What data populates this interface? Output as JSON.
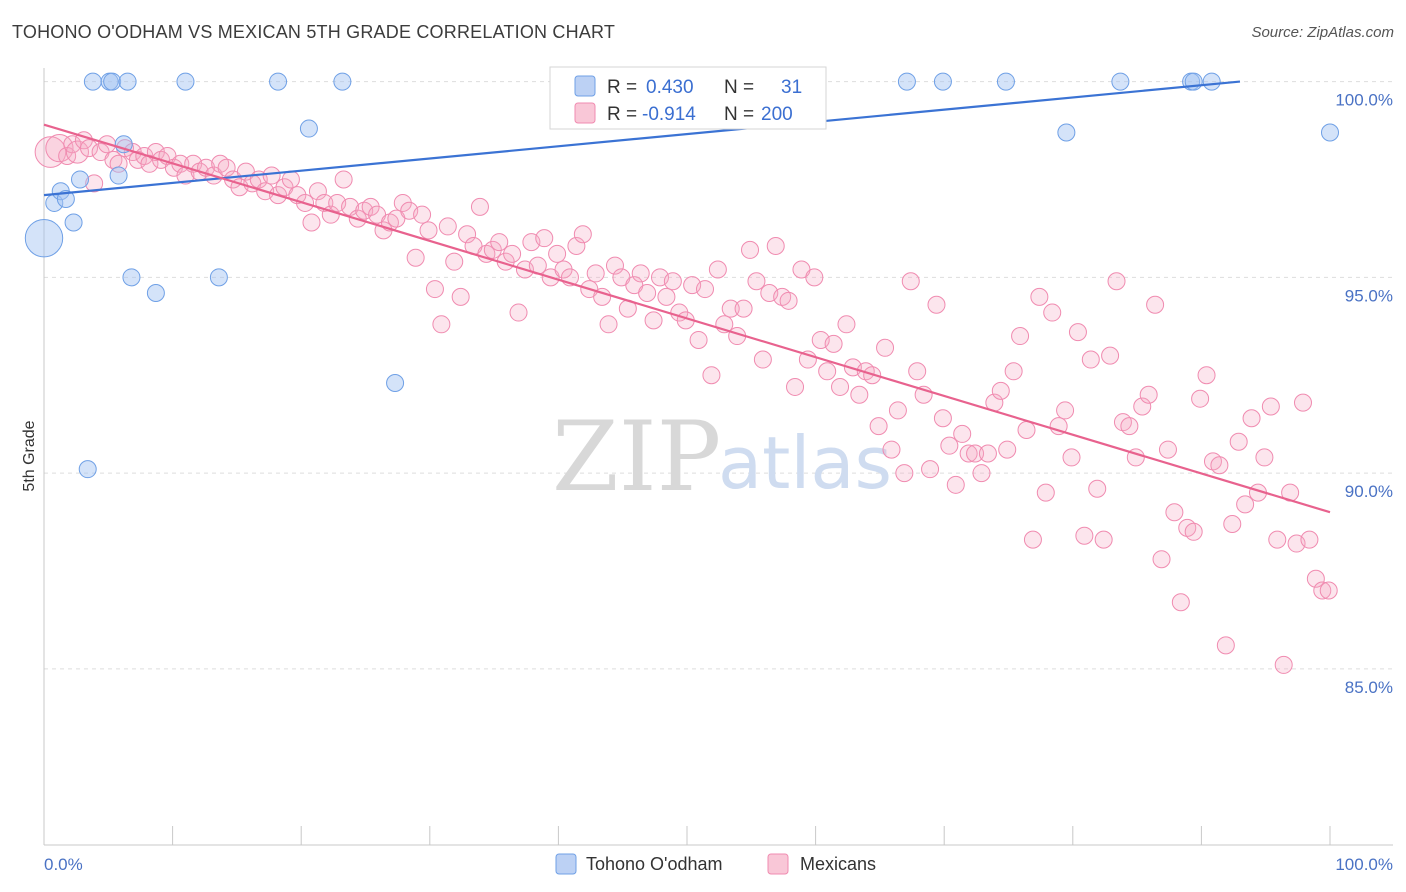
{
  "title": "TOHONO O'ODHAM VS MEXICAN 5TH GRADE CORRELATION CHART",
  "source": "Source: ZipAtlas.com",
  "watermark": {
    "zip": "ZIP",
    "atlas": "atlas"
  },
  "legend": {
    "rows": [
      {
        "r_label": "R =",
        "r_value": "0.430",
        "n_label": "N =",
        "n_value": "31",
        "color": "#6fa0e6"
      },
      {
        "r_label": "R =",
        "r_value": "-0.914",
        "n_label": "N =",
        "n_value": "200",
        "color": "#f08bb0"
      }
    ]
  },
  "bottom_legend": [
    {
      "label": "Tohono O'odham",
      "color": "#6fa0e6"
    },
    {
      "label": "Mexicans",
      "color": "#f08bb0"
    }
  ],
  "colors": {
    "blue": "#3b73d4",
    "pink": "#e8628e",
    "grid": "#dddddd"
  },
  "chart_data": {
    "type": "scatter",
    "title": "TOHONO O'ODHAM VS MEXICAN 5TH GRADE CORRELATION CHART",
    "xlabel": "",
    "ylabel": "5th Grade",
    "xlim": [
      0,
      100
    ],
    "ylim": [
      80.5,
      100.5
    ],
    "x_tick_labels": [
      "0.0%",
      "100.0%"
    ],
    "y_ticks": [
      85,
      90,
      95,
      100
    ],
    "y_tick_labels": [
      "85.0%",
      "90.0%",
      "95.0%",
      "100.0%"
    ],
    "grid": true,
    "series": [
      {
        "name": "Tohono O'odham",
        "color": "#6fa0e6",
        "trend": {
          "x": [
            0,
            93
          ],
          "y": [
            97.1,
            100.0
          ]
        },
        "points": [
          [
            0,
            96.0,
            2.2
          ],
          [
            0.8,
            96.9,
            1
          ],
          [
            1.3,
            97.2,
            1
          ],
          [
            1.7,
            97.0,
            1
          ],
          [
            2.3,
            96.4,
            1
          ],
          [
            2.8,
            97.5,
            1
          ],
          [
            3.4,
            90.1,
            1
          ],
          [
            3.8,
            100.0,
            1
          ],
          [
            5.1,
            100.0,
            1
          ],
          [
            5.3,
            100.0,
            1
          ],
          [
            5.8,
            97.6,
            1
          ],
          [
            6.2,
            98.4,
            1
          ],
          [
            6.5,
            100.0,
            1
          ],
          [
            6.8,
            95.0,
            1
          ],
          [
            8.7,
            94.6,
            1
          ],
          [
            11,
            100.0,
            1
          ],
          [
            13.6,
            95.0,
            1
          ],
          [
            18.2,
            100.0,
            1
          ],
          [
            20.6,
            98.8,
            1
          ],
          [
            23.2,
            100.0,
            1
          ],
          [
            27.3,
            92.3,
            1
          ],
          [
            47.8,
            100.0,
            1
          ],
          [
            55.3,
            100.0,
            1
          ],
          [
            67.1,
            100.0,
            1
          ],
          [
            69.9,
            100.0,
            1
          ],
          [
            74.8,
            100.0,
            1
          ],
          [
            79.5,
            98.7,
            1
          ],
          [
            83.7,
            100.0,
            1
          ],
          [
            89.2,
            100.0,
            1
          ],
          [
            89.4,
            100.0,
            1
          ],
          [
            90.8,
            100.0,
            1
          ],
          [
            100,
            98.7,
            1
          ]
        ]
      },
      {
        "name": "Mexicans",
        "color": "#f08bb0",
        "trend": {
          "x": [
            0,
            100
          ],
          "y": [
            98.9,
            89.0
          ]
        },
        "points": [
          [
            0.5,
            98.2,
            1.8
          ],
          [
            1.2,
            98.3,
            1.6
          ],
          [
            1.8,
            98.1,
            1
          ],
          [
            2.2,
            98.4,
            1
          ],
          [
            2.6,
            98.2,
            1.3
          ],
          [
            3.1,
            98.5,
            1
          ],
          [
            3.5,
            98.3,
            1
          ],
          [
            3.9,
            97.4,
            1
          ],
          [
            4.4,
            98.2,
            1
          ],
          [
            4.9,
            98.4,
            1
          ],
          [
            5.4,
            98.0,
            1
          ],
          [
            5.8,
            97.9,
            1
          ],
          [
            6.3,
            98.3,
            1
          ],
          [
            6.9,
            98.2,
            1
          ],
          [
            7.3,
            98.0,
            1
          ],
          [
            7.8,
            98.1,
            1
          ],
          [
            8.2,
            97.9,
            1
          ],
          [
            8.7,
            98.2,
            1
          ],
          [
            9.1,
            98.0,
            1
          ],
          [
            9.6,
            98.1,
            1
          ],
          [
            10.1,
            97.8,
            1
          ],
          [
            10.6,
            97.9,
            1
          ],
          [
            11.0,
            97.6,
            1
          ],
          [
            11.6,
            97.9,
            1
          ],
          [
            12.1,
            97.7,
            1
          ],
          [
            12.6,
            97.8,
            1
          ],
          [
            13.2,
            97.6,
            1
          ],
          [
            13.7,
            97.9,
            1
          ],
          [
            14.2,
            97.8,
            1
          ],
          [
            14.7,
            97.5,
            1
          ],
          [
            15.2,
            97.3,
            1
          ],
          [
            15.7,
            97.7,
            1
          ],
          [
            16.2,
            97.4,
            1
          ],
          [
            16.7,
            97.5,
            1
          ],
          [
            17.2,
            97.2,
            1
          ],
          [
            17.7,
            97.6,
            1
          ],
          [
            18.2,
            97.1,
            1
          ],
          [
            18.7,
            97.3,
            1
          ],
          [
            19.2,
            97.5,
            1
          ],
          [
            19.7,
            97.1,
            1
          ],
          [
            20.3,
            96.9,
            1
          ],
          [
            20.8,
            96.4,
            1
          ],
          [
            21.3,
            97.2,
            1
          ],
          [
            21.8,
            96.9,
            1
          ],
          [
            22.3,
            96.6,
            1
          ],
          [
            22.8,
            96.9,
            1
          ],
          [
            23.3,
            97.5,
            1
          ],
          [
            23.8,
            96.8,
            1
          ],
          [
            24.4,
            96.5,
            1
          ],
          [
            24.9,
            96.7,
            1
          ],
          [
            25.4,
            96.8,
            1
          ],
          [
            25.9,
            96.6,
            1
          ],
          [
            26.4,
            96.2,
            1
          ],
          [
            26.9,
            96.4,
            1
          ],
          [
            27.4,
            96.5,
            1
          ],
          [
            27.9,
            96.9,
            1
          ],
          [
            28.4,
            96.7,
            1
          ],
          [
            28.9,
            95.5,
            1
          ],
          [
            29.4,
            96.6,
            1
          ],
          [
            29.9,
            96.2,
            1
          ],
          [
            30.4,
            94.7,
            1
          ],
          [
            30.9,
            93.8,
            1
          ],
          [
            31.4,
            96.3,
            1
          ],
          [
            31.9,
            95.4,
            1
          ],
          [
            32.4,
            94.5,
            1
          ],
          [
            32.9,
            96.1,
            1
          ],
          [
            33.4,
            95.8,
            1
          ],
          [
            33.9,
            96.8,
            1
          ],
          [
            34.4,
            95.6,
            1
          ],
          [
            34.9,
            95.7,
            1
          ],
          [
            35.4,
            95.9,
            1
          ],
          [
            35.9,
            95.4,
            1
          ],
          [
            36.4,
            95.6,
            1
          ],
          [
            36.9,
            94.1,
            1
          ],
          [
            37.4,
            95.2,
            1
          ],
          [
            37.9,
            95.9,
            1
          ],
          [
            38.4,
            95.3,
            1
          ],
          [
            38.9,
            96.0,
            1
          ],
          [
            39.4,
            95.0,
            1
          ],
          [
            39.9,
            95.6,
            1
          ],
          [
            40.4,
            95.2,
            1
          ],
          [
            40.9,
            95.0,
            1
          ],
          [
            41.4,
            95.8,
            1
          ],
          [
            41.9,
            96.1,
            1
          ],
          [
            42.4,
            94.7,
            1
          ],
          [
            42.9,
            95.1,
            1
          ],
          [
            43.4,
            94.5,
            1
          ],
          [
            43.9,
            93.8,
            1
          ],
          [
            44.4,
            95.3,
            1
          ],
          [
            44.9,
            95.0,
            1
          ],
          [
            45.4,
            94.2,
            1
          ],
          [
            45.9,
            94.8,
            1
          ],
          [
            46.4,
            95.1,
            1
          ],
          [
            46.9,
            94.6,
            1
          ],
          [
            47.4,
            93.9,
            1
          ],
          [
            47.9,
            95.0,
            1
          ],
          [
            48.4,
            94.5,
            1
          ],
          [
            48.9,
            94.9,
            1
          ],
          [
            49.4,
            94.1,
            1
          ],
          [
            49.9,
            93.9,
            1
          ],
          [
            50.4,
            94.8,
            1
          ],
          [
            50.9,
            93.4,
            1
          ],
          [
            51.4,
            94.7,
            1
          ],
          [
            51.9,
            92.5,
            1
          ],
          [
            52.4,
            95.2,
            1
          ],
          [
            52.9,
            93.8,
            1
          ],
          [
            53.4,
            94.2,
            1
          ],
          [
            53.9,
            93.5,
            1
          ],
          [
            54.4,
            94.2,
            1
          ],
          [
            54.9,
            95.7,
            1
          ],
          [
            55.4,
            94.9,
            1
          ],
          [
            55.9,
            92.9,
            1
          ],
          [
            56.4,
            94.6,
            1
          ],
          [
            56.9,
            95.8,
            1
          ],
          [
            57.4,
            94.5,
            1
          ],
          [
            57.9,
            94.4,
            1
          ],
          [
            58.4,
            92.2,
            1
          ],
          [
            58.9,
            95.2,
            1
          ],
          [
            59.4,
            92.9,
            1
          ],
          [
            59.9,
            95.0,
            1
          ],
          [
            60.4,
            93.4,
            1
          ],
          [
            60.9,
            92.6,
            1
          ],
          [
            61.4,
            93.3,
            1
          ],
          [
            61.9,
            92.2,
            1
          ],
          [
            62.4,
            93.8,
            1
          ],
          [
            62.9,
            92.7,
            1
          ],
          [
            63.4,
            92.0,
            1
          ],
          [
            63.9,
            92.6,
            1
          ],
          [
            64.4,
            92.5,
            1
          ],
          [
            64.9,
            91.2,
            1
          ],
          [
            65.4,
            93.2,
            1
          ],
          [
            65.9,
            90.6,
            1
          ],
          [
            66.4,
            91.6,
            1
          ],
          [
            66.9,
            90.0,
            1
          ],
          [
            67.4,
            94.9,
            1
          ],
          [
            67.9,
            92.6,
            1
          ],
          [
            68.4,
            92.0,
            1
          ],
          [
            68.9,
            90.1,
            1
          ],
          [
            69.4,
            94.3,
            1
          ],
          [
            69.9,
            91.4,
            1
          ],
          [
            70.4,
            90.7,
            1
          ],
          [
            70.9,
            89.7,
            1
          ],
          [
            71.4,
            91.0,
            1
          ],
          [
            71.9,
            90.5,
            1
          ],
          [
            72.4,
            90.5,
            1
          ],
          [
            72.9,
            90.0,
            1
          ],
          [
            73.4,
            90.5,
            1
          ],
          [
            73.9,
            91.8,
            1
          ],
          [
            74.4,
            92.1,
            1
          ],
          [
            74.9,
            90.6,
            1
          ],
          [
            75.4,
            92.6,
            1
          ],
          [
            75.9,
            93.5,
            1
          ],
          [
            76.4,
            91.1,
            1
          ],
          [
            76.9,
            88.3,
            1
          ],
          [
            77.4,
            94.5,
            1
          ],
          [
            77.9,
            89.5,
            1
          ],
          [
            78.4,
            94.1,
            1
          ],
          [
            78.9,
            91.2,
            1
          ],
          [
            79.4,
            91.6,
            1
          ],
          [
            79.9,
            90.4,
            1
          ],
          [
            80.4,
            93.6,
            1
          ],
          [
            80.9,
            88.4,
            1
          ],
          [
            81.4,
            92.9,
            1
          ],
          [
            81.9,
            89.6,
            1
          ],
          [
            82.4,
            88.3,
            1
          ],
          [
            82.9,
            93.0,
            1
          ],
          [
            83.4,
            94.9,
            1
          ],
          [
            83.9,
            91.3,
            1
          ],
          [
            84.4,
            91.2,
            1
          ],
          [
            84.9,
            90.4,
            1
          ],
          [
            85.4,
            91.7,
            1
          ],
          [
            85.9,
            92.0,
            1
          ],
          [
            86.4,
            94.3,
            1
          ],
          [
            86.9,
            87.8,
            1
          ],
          [
            87.4,
            90.6,
            1
          ],
          [
            87.9,
            89.0,
            1
          ],
          [
            88.4,
            86.7,
            1
          ],
          [
            88.9,
            88.6,
            1
          ],
          [
            89.4,
            88.5,
            1
          ],
          [
            89.9,
            91.9,
            1
          ],
          [
            90.4,
            92.5,
            1
          ],
          [
            90.9,
            90.3,
            1
          ],
          [
            91.4,
            90.2,
            1
          ],
          [
            91.9,
            85.6,
            1
          ],
          [
            92.4,
            88.7,
            1
          ],
          [
            92.9,
            90.8,
            1
          ],
          [
            93.4,
            89.2,
            1
          ],
          [
            93.9,
            91.4,
            1
          ],
          [
            94.4,
            89.5,
            1
          ],
          [
            94.9,
            90.4,
            1
          ],
          [
            95.4,
            91.7,
            1
          ],
          [
            95.9,
            88.3,
            1
          ],
          [
            96.4,
            85.1,
            1
          ],
          [
            96.9,
            89.5,
            1
          ],
          [
            97.4,
            88.2,
            1
          ],
          [
            97.9,
            91.8,
            1
          ],
          [
            98.4,
            88.3,
            1
          ],
          [
            98.9,
            87.3,
            1
          ],
          [
            99.4,
            87.0,
            1
          ],
          [
            99.9,
            87.0,
            1
          ]
        ]
      }
    ]
  }
}
